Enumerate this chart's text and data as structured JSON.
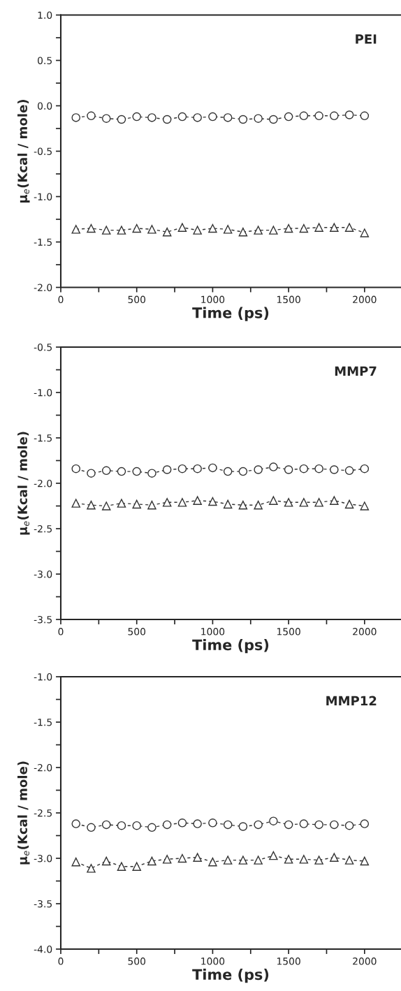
{
  "chart_data": [
    {
      "type": "line",
      "title": "PEI",
      "xlabel": "Time (ps)",
      "ylabel": "μ$_{e}$(Kcal / mole)",
      "line_style": "dashed",
      "grid": false,
      "legend": false,
      "x": [
        100,
        200,
        300,
        400,
        500,
        600,
        700,
        800,
        900,
        1000,
        1100,
        1200,
        1300,
        1400,
        1500,
        1600,
        1700,
        1800,
        1900,
        2000
      ],
      "xlim": [
        0,
        2240
      ],
      "xticks": [
        0,
        {
          "value": 250,
          "label": null
        },
        500,
        {
          "value": 750,
          "label": null
        },
        1000,
        {
          "value": 1250,
          "label": null
        },
        1500,
        {
          "value": 1750,
          "label": null
        },
        2000
      ],
      "ylim": [
        -2.0,
        1.0
      ],
      "yticks": [
        {
          "value": -2.0,
          "label": "-2.0"
        },
        {
          "value": -1.75,
          "label": null
        },
        {
          "value": -1.5,
          "label": "-1.5"
        },
        {
          "value": -1.25,
          "label": null
        },
        {
          "value": -1.0,
          "label": "-1.0"
        },
        {
          "value": -0.75,
          "label": null
        },
        {
          "value": -0.5,
          "label": "-0.5"
        },
        {
          "value": -0.25,
          "label": null
        },
        {
          "value": 0.0,
          "label": "0.0"
        },
        {
          "value": 0.25,
          "label": null
        },
        {
          "value": 0.5,
          "label": "0.5"
        },
        {
          "value": 0.75,
          "label": null
        },
        {
          "value": 1.0,
          "label": "1.0"
        }
      ],
      "series": [
        {
          "color": "#333333",
          "marker": "circle",
          "values": [
            -0.13,
            -0.11,
            -0.14,
            -0.15,
            -0.12,
            -0.13,
            -0.15,
            -0.12,
            -0.13,
            -0.12,
            -0.13,
            -0.15,
            -0.14,
            -0.15,
            -0.12,
            -0.11,
            -0.11,
            -0.11,
            -0.1,
            -0.11
          ]
        },
        {
          "color": "#333333",
          "marker": "triangle",
          "values": [
            -1.36,
            -1.35,
            -1.37,
            -1.37,
            -1.35,
            -1.36,
            -1.39,
            -1.34,
            -1.37,
            -1.35,
            -1.36,
            -1.39,
            -1.37,
            -1.37,
            -1.35,
            -1.35,
            -1.34,
            -1.34,
            -1.34,
            -1.4
          ]
        }
      ]
    },
    {
      "type": "line",
      "title": "MMP7",
      "xlabel": "Time (ps)",
      "ylabel": "μ$_{e}$(Kcal / mole)",
      "line_style": "dashed",
      "grid": false,
      "legend": false,
      "x": [
        100,
        200,
        300,
        400,
        500,
        600,
        700,
        800,
        900,
        1000,
        1100,
        1200,
        1300,
        1400,
        1500,
        1600,
        1700,
        1800,
        1900,
        2000
      ],
      "xlim": [
        0,
        2240
      ],
      "xticks": [
        0,
        {
          "value": 250,
          "label": null
        },
        500,
        {
          "value": 750,
          "label": null
        },
        1000,
        {
          "value": 1250,
          "label": null
        },
        1500,
        {
          "value": 1750,
          "label": null
        },
        2000
      ],
      "ylim": [
        -3.5,
        -0.5
      ],
      "yticks": [
        {
          "value": -3.5,
          "label": "-3.5"
        },
        {
          "value": -3.25,
          "label": null
        },
        {
          "value": -3.0,
          "label": "-3.0"
        },
        {
          "value": -2.75,
          "label": null
        },
        {
          "value": -2.5,
          "label": "-2.5"
        },
        {
          "value": -2.25,
          "label": null
        },
        {
          "value": -2.0,
          "label": "-2.0"
        },
        {
          "value": -1.75,
          "label": null
        },
        {
          "value": -1.5,
          "label": "-1.5"
        },
        {
          "value": -1.25,
          "label": null
        },
        {
          "value": -1.0,
          "label": "-1.0"
        },
        {
          "value": -0.75,
          "label": null
        },
        {
          "value": -0.5,
          "label": "-0.5"
        }
      ],
      "series": [
        {
          "color": "#333333",
          "marker": "circle",
          "values": [
            -1.84,
            -1.89,
            -1.86,
            -1.87,
            -1.87,
            -1.89,
            -1.85,
            -1.84,
            -1.84,
            -1.83,
            -1.87,
            -1.87,
            -1.85,
            -1.82,
            -1.85,
            -1.84,
            -1.84,
            -1.85,
            -1.86,
            -1.84
          ]
        },
        {
          "color": "#333333",
          "marker": "triangle",
          "values": [
            -2.22,
            -2.24,
            -2.25,
            -2.22,
            -2.23,
            -2.24,
            -2.21,
            -2.21,
            -2.19,
            -2.2,
            -2.23,
            -2.24,
            -2.24,
            -2.19,
            -2.21,
            -2.21,
            -2.21,
            -2.19,
            -2.23,
            -2.25
          ]
        }
      ]
    },
    {
      "type": "line",
      "title": "MMP12",
      "xlabel": "Time (ps)",
      "ylabel": "μ$_{e}$(Kcal / mole)",
      "line_style": "dashed",
      "grid": false,
      "legend": false,
      "x": [
        100,
        200,
        300,
        400,
        500,
        600,
        700,
        800,
        900,
        1000,
        1100,
        1200,
        1300,
        1400,
        1500,
        1600,
        1700,
        1800,
        1900,
        2000
      ],
      "xlim": [
        0,
        2240
      ],
      "xticks": [
        0,
        {
          "value": 250,
          "label": null
        },
        500,
        {
          "value": 750,
          "label": null
        },
        1000,
        {
          "value": 1250,
          "label": null
        },
        1500,
        {
          "value": 1750,
          "label": null
        },
        2000
      ],
      "ylim": [
        -4.0,
        -1.0
      ],
      "yticks": [
        {
          "value": -4.0,
          "label": "-4.0"
        },
        {
          "value": -3.75,
          "label": null
        },
        {
          "value": -3.5,
          "label": "-3.5"
        },
        {
          "value": -3.25,
          "label": null
        },
        {
          "value": -3.0,
          "label": "-3.0"
        },
        {
          "value": -2.75,
          "label": null
        },
        {
          "value": -2.5,
          "label": "-2.5"
        },
        {
          "value": -2.25,
          "label": null
        },
        {
          "value": -2.0,
          "label": "-2.0"
        },
        {
          "value": -1.75,
          "label": null
        },
        {
          "value": -1.5,
          "label": "-1.5"
        },
        {
          "value": -1.25,
          "label": null
        },
        {
          "value": -1.0,
          "label": "-1.0"
        }
      ],
      "series": [
        {
          "color": "#333333",
          "marker": "circle",
          "values": [
            -2.62,
            -2.66,
            -2.63,
            -2.64,
            -2.64,
            -2.66,
            -2.63,
            -2.61,
            -2.62,
            -2.61,
            -2.63,
            -2.65,
            -2.63,
            -2.59,
            -2.63,
            -2.62,
            -2.63,
            -2.63,
            -2.64,
            -2.62
          ]
        },
        {
          "color": "#333333",
          "marker": "triangle",
          "values": [
            -3.04,
            -3.11,
            -3.03,
            -3.09,
            -3.09,
            -3.03,
            -3.01,
            -3.0,
            -2.99,
            -3.04,
            -3.02,
            -3.02,
            -3.02,
            -2.97,
            -3.01,
            -3.01,
            -3.02,
            -2.99,
            -3.02,
            -3.03
          ]
        }
      ]
    }
  ]
}
